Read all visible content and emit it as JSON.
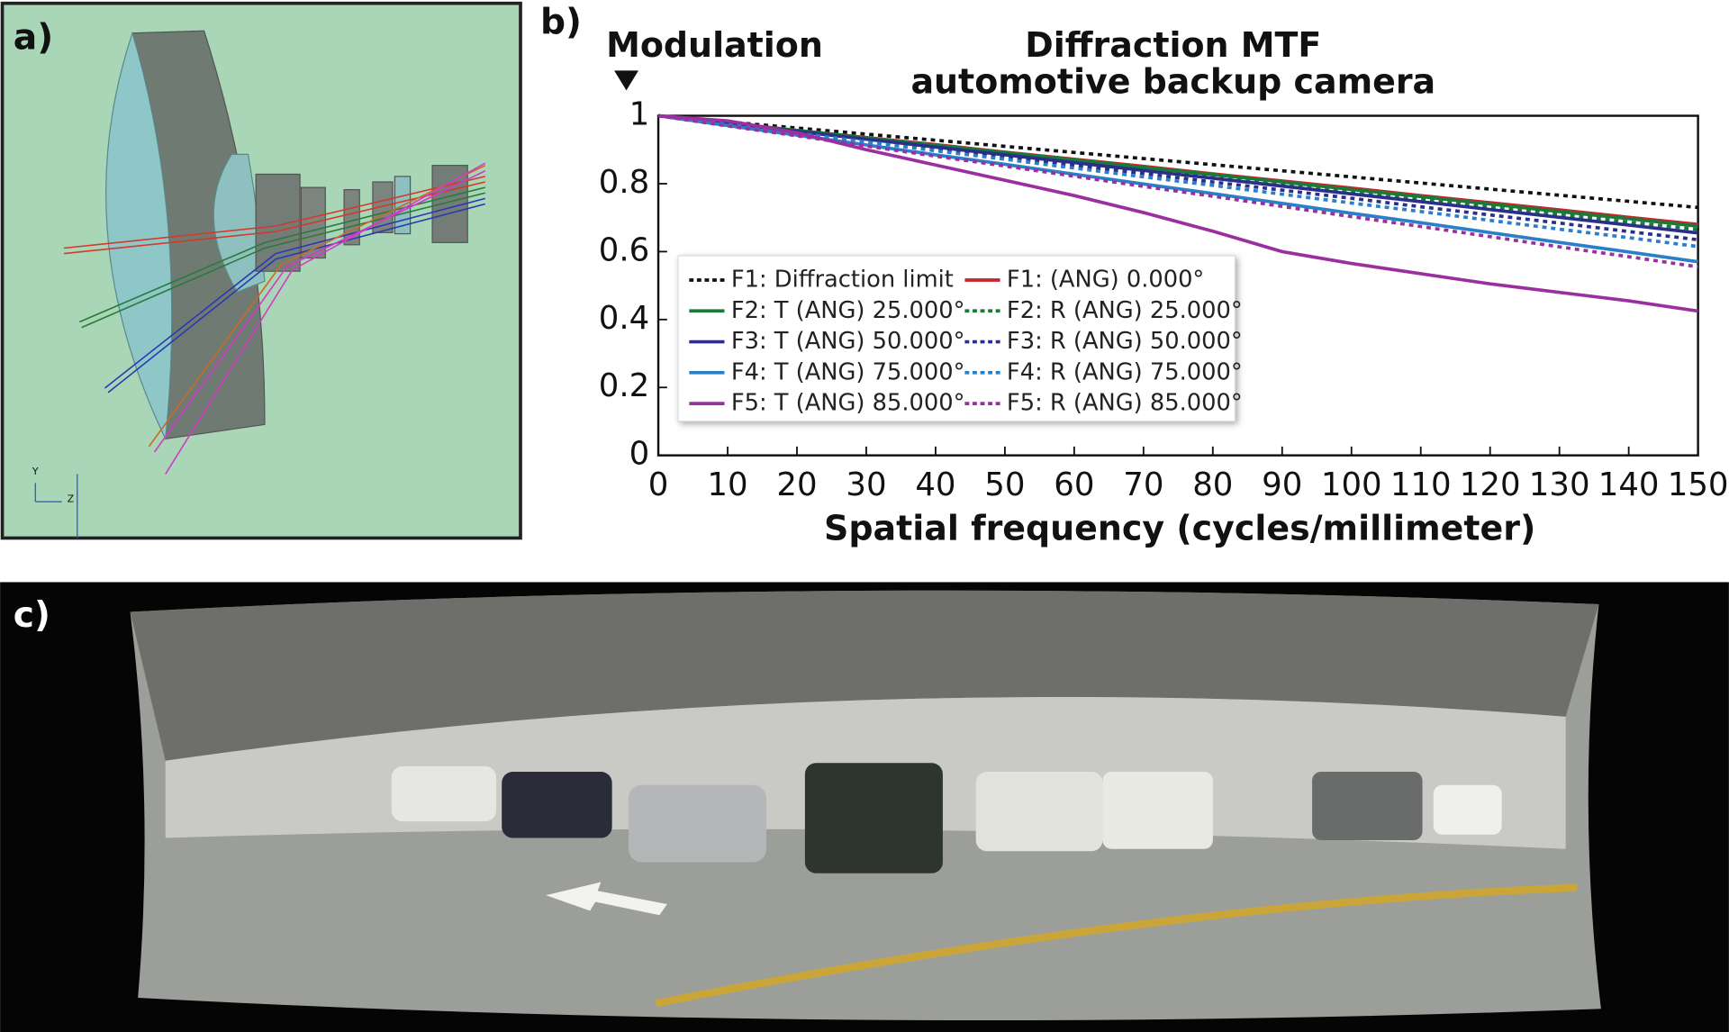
{
  "panel_labels": [
    "a)",
    "b)",
    "c)"
  ],
  "diagram_axis_labels": [
    "Y",
    "Z"
  ],
  "chart_data": {
    "type": "line",
    "title": "Diffraction MTF",
    "subtitle": "automotive backup camera",
    "ylabel": "Modulation",
    "xlabel": "Spatial frequency (cycles/millimeter)",
    "x": [
      0,
      10,
      20,
      30,
      40,
      50,
      60,
      70,
      80,
      90,
      100,
      110,
      120,
      130,
      140,
      150
    ],
    "xlim": [
      0,
      150
    ],
    "xticks": [
      0,
      10,
      20,
      30,
      40,
      50,
      60,
      70,
      80,
      90,
      100,
      110,
      120,
      130,
      140,
      150
    ],
    "ylim": [
      0,
      1
    ],
    "yticks": [
      0,
      0.2,
      0.4,
      0.6,
      0.8,
      1
    ],
    "grid": false,
    "legend": "lower-left",
    "series": [
      {
        "name": "F1: Diffraction limit",
        "color": "#111111",
        "dashed": true,
        "values": [
          1,
          0.982,
          0.964,
          0.946,
          0.928,
          0.91,
          0.892,
          0.874,
          0.856,
          0.838,
          0.82,
          0.802,
          0.784,
          0.766,
          0.748,
          0.73
        ]
      },
      {
        "name": "F1: (ANG) 0.000°",
        "color": "#c8242b",
        "dashed": false,
        "values": [
          1,
          0.979,
          0.957,
          0.936,
          0.915,
          0.893,
          0.872,
          0.851,
          0.829,
          0.808,
          0.787,
          0.765,
          0.744,
          0.723,
          0.701,
          0.68
        ]
      },
      {
        "name": "F2: T (ANG) 25.000°",
        "color": "#1b7a3a",
        "dashed": false,
        "values": [
          1,
          0.978,
          0.957,
          0.935,
          0.913,
          0.892,
          0.87,
          0.848,
          0.827,
          0.805,
          0.783,
          0.762,
          0.74,
          0.718,
          0.697,
          0.675
        ]
      },
      {
        "name": "F2: R (ANG) 25.000°",
        "color": "#1b7a3a",
        "dashed": true,
        "values": [
          1,
          0.978,
          0.955,
          0.933,
          0.911,
          0.888,
          0.866,
          0.844,
          0.821,
          0.799,
          0.777,
          0.754,
          0.732,
          0.71,
          0.687,
          0.665
        ]
      },
      {
        "name": "F3: T (ANG) 50.000°",
        "color": "#2a2f8a",
        "dashed": false,
        "values": [
          1,
          0.977,
          0.954,
          0.931,
          0.908,
          0.885,
          0.862,
          0.839,
          0.816,
          0.793,
          0.77,
          0.747,
          0.724,
          0.701,
          0.678,
          0.655
        ]
      },
      {
        "name": "F3: R (ANG) 50.000°",
        "color": "#2a2f8a",
        "dashed": true,
        "values": [
          1,
          0.976,
          0.951,
          0.927,
          0.903,
          0.878,
          0.854,
          0.83,
          0.805,
          0.781,
          0.757,
          0.732,
          0.708,
          0.684,
          0.659,
          0.635
        ]
      },
      {
        "name": "F4: T (ANG) 75.000°",
        "color": "#2a7fc9",
        "dashed": false,
        "values": [
          1,
          0.971,
          0.943,
          0.914,
          0.885,
          0.857,
          0.828,
          0.799,
          0.771,
          0.742,
          0.713,
          0.685,
          0.656,
          0.627,
          0.599,
          0.57
        ]
      },
      {
        "name": "F4: R (ANG) 75.000°",
        "color": "#2a7fc9",
        "dashed": true,
        "values": [
          1,
          0.974,
          0.949,
          0.923,
          0.897,
          0.872,
          0.846,
          0.82,
          0.795,
          0.769,
          0.743,
          0.718,
          0.692,
          0.666,
          0.641,
          0.615
        ]
      },
      {
        "name": "F5: T (ANG) 85.000°",
        "color": "#9b2fa0",
        "dashed": false,
        "values": [
          1,
          0.985,
          0.95,
          0.9,
          0.855,
          0.81,
          0.765,
          0.715,
          0.66,
          0.6,
          0.565,
          0.535,
          0.505,
          0.48,
          0.455,
          0.425
        ]
      },
      {
        "name": "F5: R (ANG) 85.000°",
        "color": "#9b2fa0",
        "dashed": true,
        "values": [
          1,
          0.97,
          0.941,
          0.911,
          0.881,
          0.852,
          0.822,
          0.792,
          0.763,
          0.733,
          0.703,
          0.674,
          0.644,
          0.614,
          0.585,
          0.555
        ]
      }
    ]
  }
}
